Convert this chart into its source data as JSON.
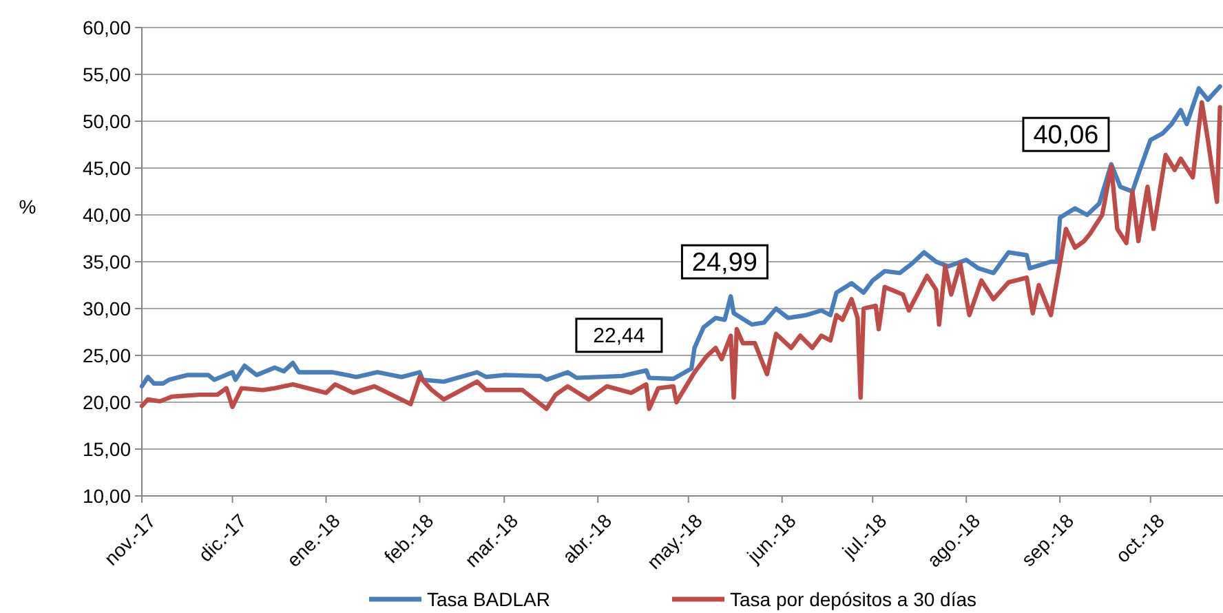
{
  "chart_data": {
    "type": "line",
    "ylabel": "%",
    "xlim": [
      "2017-11-01",
      "2018-10-25"
    ],
    "ylim": [
      10,
      60
    ],
    "yticks": [
      {
        "value": 10,
        "label": "10,00"
      },
      {
        "value": 15,
        "label": "15,00"
      },
      {
        "value": 20,
        "label": "20,00"
      },
      {
        "value": 25,
        "label": "25,00"
      },
      {
        "value": 30,
        "label": "30,00"
      },
      {
        "value": 35,
        "label": "35,00"
      },
      {
        "value": 40,
        "label": "40,00"
      },
      {
        "value": 45,
        "label": "45,00"
      },
      {
        "value": 50,
        "label": "50,00"
      },
      {
        "value": 55,
        "label": "55,00"
      },
      {
        "value": 60,
        "label": "60,00"
      }
    ],
    "xticks": [
      {
        "value": "2017-11-01",
        "label": "nov.-17"
      },
      {
        "value": "2017-12-01",
        "label": "dic.-17"
      },
      {
        "value": "2018-01-01",
        "label": "ene.-18"
      },
      {
        "value": "2018-02-01",
        "label": "feb.-18"
      },
      {
        "value": "2018-03-01",
        "label": "mar.-18"
      },
      {
        "value": "2018-04-01",
        "label": "abr.-18"
      },
      {
        "value": "2018-05-01",
        "label": "may.-18"
      },
      {
        "value": "2018-06-01",
        "label": "jun.-18"
      },
      {
        "value": "2018-07-01",
        "label": "jul.-18"
      },
      {
        "value": "2018-08-01",
        "label": "ago.-18"
      },
      {
        "value": "2018-09-01",
        "label": "sep.-18"
      },
      {
        "value": "2018-10-01",
        "label": "oct.-18"
      }
    ],
    "grid": "y",
    "legend": "bottom",
    "marker": "none",
    "line_style": "solid",
    "annotations": [
      {
        "text": "22,44",
        "x": "2018-04-08",
        "y": 22.44
      },
      {
        "text": "24,99",
        "x": "2018-05-13",
        "y": 24.99
      },
      {
        "text": "40,06",
        "x": "2018-09-03",
        "y": 40.06
      }
    ],
    "series": [
      {
        "name": "Tasa BADLAR",
        "color": "#4a7ebb",
        "x": [
          "2017-11-01",
          "2017-11-03",
          "2017-11-05",
          "2017-11-08",
          "2017-11-10",
          "2017-11-16",
          "2017-11-23",
          "2017-11-25",
          "2017-12-01",
          "2017-12-02",
          "2017-12-05",
          "2017-12-09",
          "2017-12-15",
          "2017-12-18",
          "2017-12-21",
          "2017-12-23",
          "2018-01-03",
          "2018-01-11",
          "2018-01-18",
          "2018-01-26",
          "2018-02-01",
          "2018-02-02",
          "2018-02-09",
          "2018-02-20",
          "2018-02-23",
          "2018-03-01",
          "2018-03-13",
          "2018-03-15",
          "2018-03-22",
          "2018-03-25",
          "2018-04-09",
          "2018-04-17",
          "2018-04-18",
          "2018-04-26",
          "2018-05-02",
          "2018-05-03",
          "2018-05-06",
          "2018-05-10",
          "2018-05-13",
          "2018-05-15",
          "2018-05-16",
          "2018-05-22",
          "2018-05-26",
          "2018-05-30",
          "2018-06-03",
          "2018-06-09",
          "2018-06-14",
          "2018-06-17",
          "2018-06-19",
          "2018-06-24",
          "2018-06-28",
          "2018-07-01",
          "2018-07-05",
          "2018-07-10",
          "2018-07-14",
          "2018-07-18",
          "2018-07-22",
          "2018-07-26",
          "2018-08-01",
          "2018-08-05",
          "2018-08-10",
          "2018-08-15",
          "2018-08-21",
          "2018-08-22",
          "2018-08-26",
          "2018-08-29",
          "2018-08-31",
          "2018-09-01",
          "2018-09-06",
          "2018-09-10",
          "2018-09-14",
          "2018-09-18",
          "2018-09-21",
          "2018-09-25",
          "2018-09-27",
          "2018-10-01",
          "2018-10-05",
          "2018-10-08",
          "2018-10-11",
          "2018-10-13",
          "2018-10-17",
          "2018-10-20",
          "2018-10-22",
          "2018-10-24"
        ],
        "values": [
          21.7,
          22.7,
          22.0,
          22.0,
          22.4,
          22.9,
          22.9,
          22.4,
          23.2,
          22.4,
          23.9,
          22.9,
          23.7,
          23.3,
          24.2,
          23.2,
          23.2,
          22.7,
          23.2,
          22.7,
          23.2,
          22.4,
          22.2,
          23.2,
          22.7,
          22.9,
          22.8,
          22.4,
          23.2,
          22.6,
          22.8,
          23.4,
          22.6,
          22.5,
          23.6,
          25.8,
          28.0,
          29.0,
          28.8,
          31.3,
          29.5,
          28.3,
          28.5,
          30.0,
          29.0,
          29.3,
          29.8,
          29.3,
          31.7,
          32.7,
          31.7,
          33.0,
          34.0,
          33.8,
          34.8,
          36.0,
          35.0,
          34.5,
          35.2,
          34.3,
          33.8,
          36.0,
          35.7,
          34.3,
          34.7,
          35.0,
          35.0,
          39.7,
          40.7,
          40.0,
          41.2,
          45.4,
          43.0,
          42.5,
          44.4,
          48.0,
          48.7,
          49.7,
          51.2,
          49.7,
          53.5,
          52.3,
          53.0,
          53.7
        ]
      },
      {
        "name": "Tasa por depósitos a 30 días",
        "color": "#be4b48",
        "x": [
          "2017-11-01",
          "2017-11-03",
          "2017-11-07",
          "2017-11-11",
          "2017-11-20",
          "2017-11-26",
          "2017-11-29",
          "2017-12-01",
          "2017-12-04",
          "2017-12-11",
          "2017-12-15",
          "2017-12-21",
          "2018-01-01",
          "2018-01-04",
          "2018-01-10",
          "2018-01-17",
          "2018-01-29",
          "2018-02-01",
          "2018-02-05",
          "2018-02-09",
          "2018-02-20",
          "2018-02-23",
          "2018-03-07",
          "2018-03-15",
          "2018-03-18",
          "2018-03-22",
          "2018-03-29",
          "2018-04-04",
          "2018-04-12",
          "2018-04-17",
          "2018-04-18",
          "2018-04-21",
          "2018-04-26",
          "2018-04-27",
          "2018-05-03",
          "2018-05-07",
          "2018-05-10",
          "2018-05-12",
          "2018-05-15",
          "2018-05-16",
          "2018-05-17",
          "2018-05-19",
          "2018-05-23",
          "2018-05-27",
          "2018-05-30",
          "2018-06-04",
          "2018-06-07",
          "2018-06-11",
          "2018-06-14",
          "2018-06-17",
          "2018-06-19",
          "2018-06-21",
          "2018-06-24",
          "2018-06-26",
          "2018-06-27",
          "2018-06-28",
          "2018-07-02",
          "2018-07-03",
          "2018-07-05",
          "2018-07-11",
          "2018-07-13",
          "2018-07-19",
          "2018-07-22",
          "2018-07-23",
          "2018-07-25",
          "2018-07-27",
          "2018-07-30",
          "2018-08-02",
          "2018-08-06",
          "2018-08-10",
          "2018-08-15",
          "2018-08-21",
          "2018-08-23",
          "2018-08-25",
          "2018-08-29",
          "2018-09-01",
          "2018-09-03",
          "2018-09-06",
          "2018-09-09",
          "2018-09-11",
          "2018-09-15",
          "2018-09-18",
          "2018-09-20",
          "2018-09-23",
          "2018-09-25",
          "2018-09-27",
          "2018-09-30",
          "2018-10-02",
          "2018-10-06",
          "2018-10-09",
          "2018-10-11",
          "2018-10-15",
          "2018-10-18",
          "2018-10-20",
          "2018-10-23",
          "2018-10-24"
        ],
        "values": [
          19.6,
          20.3,
          20.1,
          20.6,
          20.8,
          20.8,
          21.5,
          19.5,
          21.5,
          21.3,
          21.5,
          21.9,
          21.0,
          21.9,
          21.0,
          21.7,
          19.8,
          22.7,
          21.3,
          20.3,
          22.2,
          21.3,
          21.3,
          19.3,
          20.8,
          21.7,
          20.3,
          21.7,
          21.0,
          21.9,
          19.3,
          21.5,
          21.7,
          20.0,
          23.2,
          24.9,
          25.8,
          24.6,
          27.1,
          20.5,
          27.8,
          26.3,
          26.3,
          23.0,
          27.3,
          25.8,
          27.1,
          25.8,
          27.1,
          26.6,
          29.3,
          28.8,
          31.0,
          29.0,
          20.5,
          30.0,
          30.3,
          27.8,
          32.3,
          31.5,
          29.8,
          33.5,
          32.0,
          28.3,
          34.5,
          31.5,
          34.8,
          29.3,
          33.0,
          31.0,
          32.8,
          33.3,
          29.5,
          32.5,
          29.3,
          34.8,
          38.5,
          36.5,
          37.2,
          38.0,
          40.0,
          45.2,
          38.5,
          37.0,
          42.5,
          37.2,
          43.0,
          38.5,
          46.4,
          44.8,
          46.0,
          44.0,
          52.0,
          48.0,
          41.4,
          51.5
        ]
      }
    ]
  }
}
